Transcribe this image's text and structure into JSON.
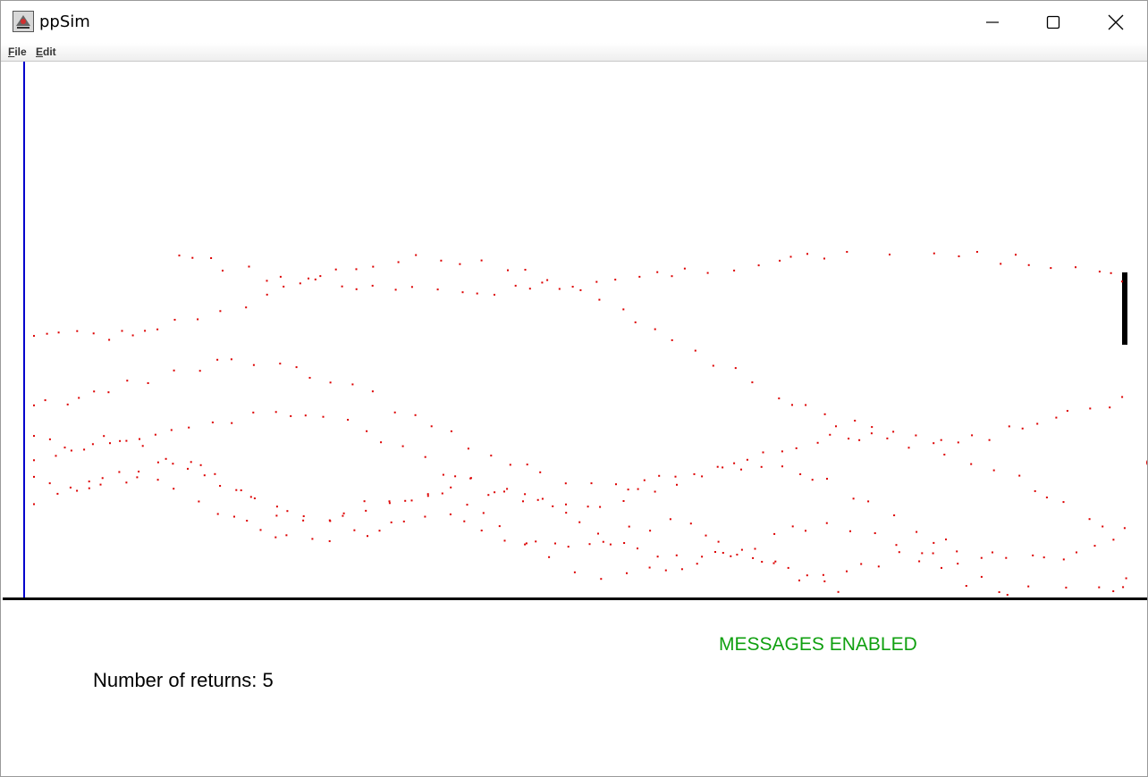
{
  "window": {
    "title": "ppSim",
    "controls": {
      "minimize": "minimize-icon",
      "maximize": "maximize-icon",
      "close": "close-icon"
    }
  },
  "menu": {
    "file": {
      "mnemonic": "F",
      "rest": "ile"
    },
    "edit": {
      "mnemonic": "E",
      "rest": "dit"
    }
  },
  "simulation": {
    "wall_color": "#0000cc",
    "particle_color": "#dd0000",
    "floor_color": "#000000",
    "paddle_color": "#000000"
  },
  "status": {
    "messages": "MESSAGES ENABLED",
    "returns_label": "Number of returns: ",
    "returns_value": "5",
    "messages_color": "#10a010"
  }
}
